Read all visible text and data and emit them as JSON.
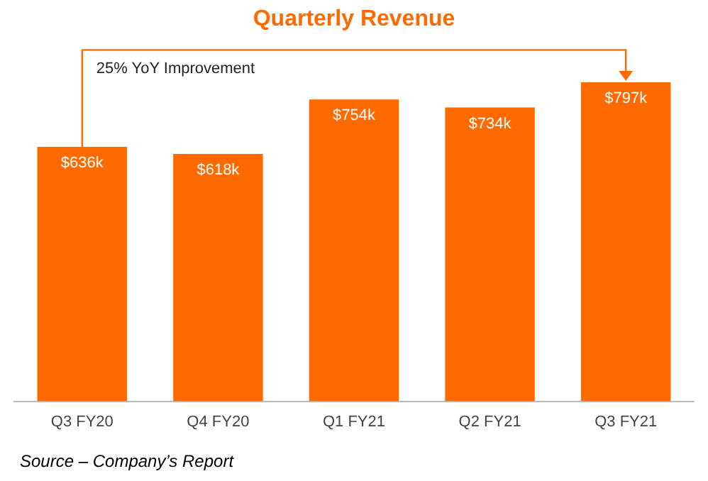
{
  "chart_data": {
    "type": "bar",
    "title": "Quarterly Revenue",
    "categories": [
      "Q3 FY20",
      "Q4 FY20",
      "Q1 FY21",
      "Q2 FY21",
      "Q3 FY21"
    ],
    "values": [
      636,
      618,
      754,
      734,
      797
    ],
    "value_labels": [
      "$636k",
      "$618k",
      "$754k",
      "$734k",
      "$797k"
    ],
    "color": "#ff6a00",
    "grid": false,
    "legend": false,
    "annotations": [
      "25% YoY Improvement",
      "Source – Company’s Report"
    ]
  }
}
